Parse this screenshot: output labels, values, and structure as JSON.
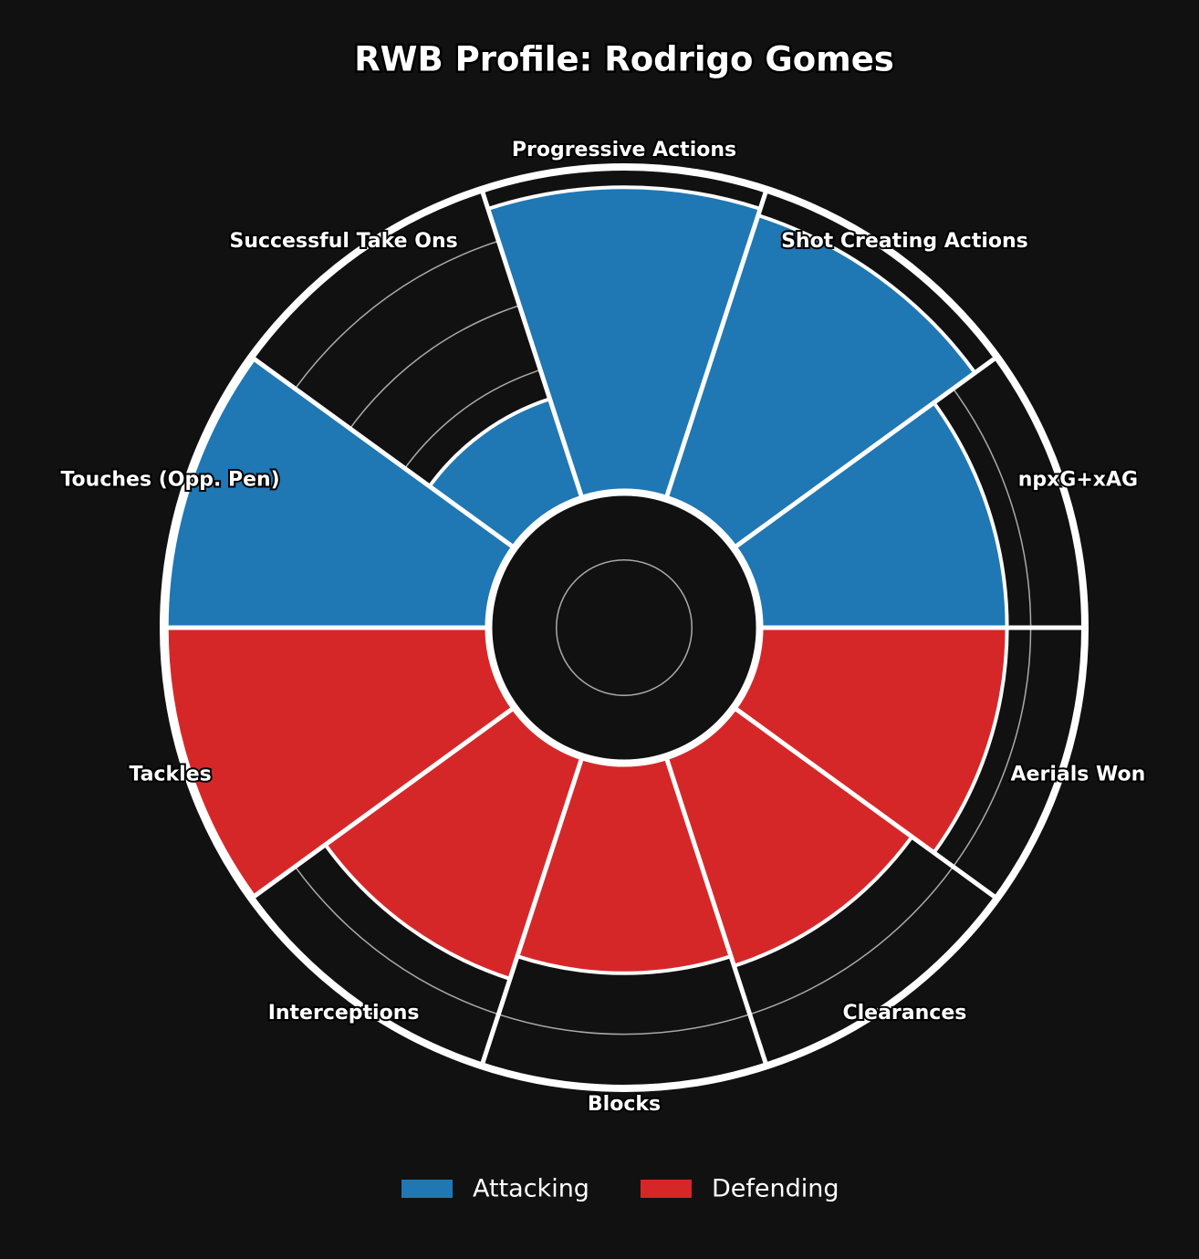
{
  "chart_data": {
    "type": "polar_bar",
    "title": "RWB Profile: Rodrigo Gomes",
    "categories": [
      "npxG+xAG",
      "Shot Creating Actions",
      "Progressive Actions",
      "Successful Take Ons",
      "Touches (Opp. Pen)",
      "Tackles",
      "Interceptions",
      "Blocks",
      "Clearances",
      "Aerials Won"
    ],
    "series": [
      {
        "name": "Attacking",
        "color": "#1f77b4",
        "values": [
          73,
          88,
          90,
          31,
          95,
          null,
          null,
          null,
          null,
          null
        ]
      },
      {
        "name": "Defending",
        "color": "#d62728",
        "values": [
          null,
          null,
          null,
          null,
          null,
          95,
          69,
          62,
          65,
          73
        ]
      }
    ],
    "ylim": [
      -40,
      96
    ],
    "yticks": [
      -20,
      0,
      20,
      40,
      60,
      80
    ],
    "grid": true,
    "legend": "bottom"
  }
}
